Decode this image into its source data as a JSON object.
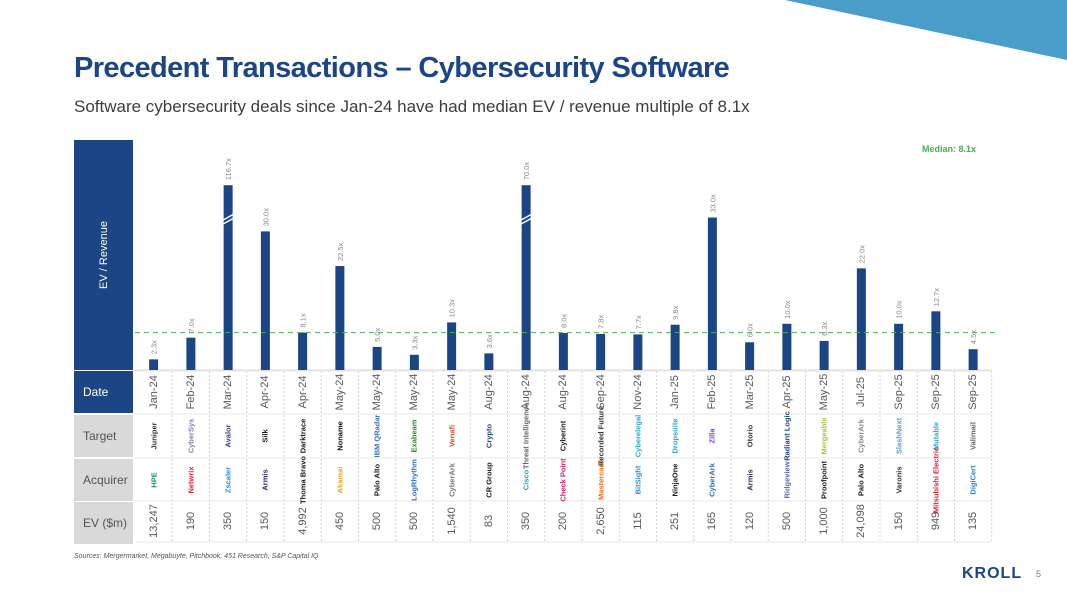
{
  "slide": {
    "title": "Precedent Transactions – Cybersecurity Software",
    "subtitle": "Software cybersecurity deals since Jan-24 have had median EV / revenue multiple of 8.1x",
    "sources": "Sources: Mergermarket, Megabuyte, Pitchbook, 451 Research, S&P Capital IQ",
    "brand": "KROLL",
    "page_number": "5",
    "colors": {
      "primary": "#1b4585",
      "accent_triangle": "#4a9cc9",
      "median": "#4cae4c",
      "row_grey": "#d9d9d9"
    }
  },
  "row_labels": {
    "date": "Date",
    "target": "Target",
    "acquirer": "Acquirer",
    "ev": "EV ($m)"
  },
  "chart_data": {
    "type": "bar",
    "title": "",
    "ylabel": "EV / Revenue",
    "xlabel": "",
    "median": 8.1,
    "median_label": "Median: 8.1x",
    "axis_break_cap": 40,
    "legend": "none",
    "grid": false,
    "categories": [
      "Jan-24",
      "Feb-24",
      "Mar-24",
      "Apr-24",
      "Apr-24",
      "May-24",
      "May-24",
      "May-24",
      "May-24",
      "Aug-24",
      "Aug-24",
      "Aug-24",
      "Sep-24",
      "Nov-24",
      "Jan-25",
      "Feb-25",
      "Mar-25",
      "Apr-25",
      "May-25",
      "Jul-25",
      "Sep-25",
      "Sep-25",
      "Sep-25"
    ],
    "values": [
      2.3,
      7.0,
      116.7,
      30.0,
      8.1,
      22.5,
      5.0,
      3.3,
      10.3,
      3.6,
      70.0,
      8.0,
      7.8,
      7.7,
      9.8,
      33.0,
      6.0,
      10.0,
      6.3,
      22.0,
      10.0,
      12.7,
      4.5
    ],
    "value_labels": [
      "2.3x",
      "7.0x",
      "116.7x",
      "30.0x",
      "8.1x",
      "22.5x",
      "5.0x",
      "3.3x",
      "10.3x",
      "3.6x",
      "70.0x",
      "8.0x",
      "7.8x",
      "7.7x",
      "9.8x",
      "33.0x",
      "6.0x",
      "10.0x",
      "6.3x",
      "22.0x",
      "10.0x",
      "12.7x",
      "4.5x"
    ],
    "broken": [
      false,
      false,
      true,
      false,
      false,
      false,
      false,
      false,
      false,
      false,
      true,
      false,
      false,
      false,
      false,
      false,
      false,
      false,
      false,
      false,
      false,
      false,
      false
    ],
    "targets": [
      "Juniper",
      "CyberSys",
      "Avalor",
      "Silk",
      "Darktrace",
      "Noname",
      "IBM QRadar",
      "Exabeam",
      "Venafi",
      "Crypto",
      "Threat Intelligence",
      "Cyberint",
      "Recorded Future",
      "Cyberelegal",
      "Dropsuite",
      "Zilla",
      "Otorio",
      "Radiant Logic",
      "Mergeable",
      "CyberArk",
      "SlashNext",
      "Mutable",
      "Valimail"
    ],
    "target_colors": [
      "#333333",
      "#8a7fb0",
      "#3a3a8a",
      "#1a1a1a",
      "#1a1a1a",
      "#111111",
      "#3b73b9",
      "#2f8a3a",
      "#d64a2e",
      "#1b4585",
      "#666666",
      "#1a1a1a",
      "#333333",
      "#2aa5d8",
      "#2aa5d8",
      "#7b3fc4",
      "#333333",
      "#1b4585",
      "#a5c83a",
      "#888888",
      "#5b9bd5",
      "#2aa5d8",
      "#666666"
    ],
    "acquirers": [
      "HPE",
      "Netwrix",
      "Zscaler",
      "Armis",
      "Thoma Bravo",
      "Akamai",
      "Palo Alto",
      "LogRhythm",
      "CyberArk",
      "CR Group",
      "Cisco",
      "Check Point",
      "Mastercard",
      "BitSight",
      "NinjaOne",
      "CyberArk",
      "Armis",
      "Ridgeview",
      "Proofpoint",
      "Palo Alto",
      "Varonis",
      "Mitsubishi Electric",
      "DigiCert"
    ],
    "acquirer_colors": [
      "#1a8a6b",
      "#d9232e",
      "#2a8fd1",
      "#2b2b5a",
      "#1a1a1a",
      "#f0a020",
      "#1a1a1a",
      "#2a6fd1",
      "#777777",
      "#1a1a1a",
      "#1ba0d7",
      "#d6246e",
      "#eb6e18",
      "#2a8fd1",
      "#1a1a1a",
      "#2a6fd1",
      "#2b2b5a",
      "#5b6bb5",
      "#1a1a1a",
      "#1a1a1a",
      "#333333",
      "#d9232e",
      "#2a7fd1"
    ],
    "ev_musd": [
      "13,247",
      "190",
      "350",
      "150",
      "4,992",
      "450",
      "500",
      "500",
      "1,540",
      "83",
      "350",
      "200",
      "2,650",
      "115",
      "251",
      "165",
      "120",
      "500",
      "1,000",
      "24,098",
      "150",
      "949",
      "135"
    ]
  }
}
